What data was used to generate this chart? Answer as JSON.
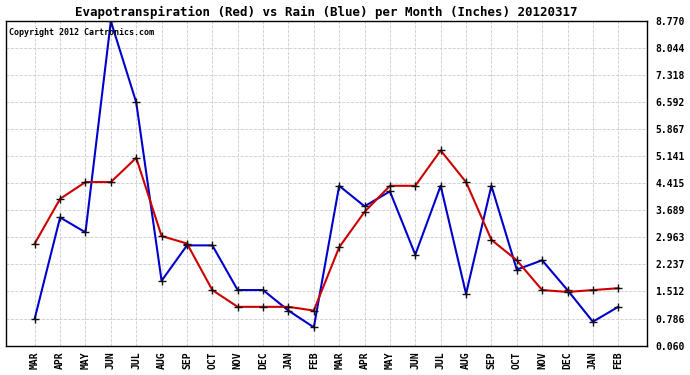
{
  "title": "Evapotranspiration (Red) vs Rain (Blue) per Month (Inches) 20120317",
  "copyright": "Copyright 2012 Cartronics.com",
  "x_labels": [
    "MAR",
    "APR",
    "MAY",
    "JUN",
    "JUL",
    "AUG",
    "SEP",
    "OCT",
    "NOV",
    "DEC",
    "JAN",
    "FEB",
    "MAR",
    "APR",
    "MAY",
    "JUN",
    "JUL",
    "AUG",
    "SEP",
    "OCT",
    "NOV",
    "DEC",
    "JAN",
    "FEB"
  ],
  "blue_values": [
    0.786,
    3.5,
    3.1,
    8.77,
    6.592,
    1.8,
    2.75,
    2.75,
    1.55,
    1.55,
    1.0,
    0.55,
    4.35,
    3.8,
    4.2,
    2.5,
    4.35,
    1.45,
    4.35,
    2.1,
    2.35,
    1.55,
    0.7,
    1.1
  ],
  "red_values": [
    2.8,
    4.0,
    4.45,
    4.45,
    5.1,
    3.0,
    2.8,
    1.55,
    1.1,
    1.1,
    1.1,
    1.0,
    2.7,
    3.65,
    4.35,
    4.35,
    5.3,
    4.45,
    2.9,
    2.35,
    1.55,
    1.5,
    1.55,
    1.6
  ],
  "y_ticks": [
    0.06,
    0.786,
    1.512,
    2.237,
    2.963,
    3.689,
    4.415,
    5.141,
    5.867,
    6.592,
    7.318,
    8.044,
    8.77
  ],
  "ylim": [
    0.06,
    8.77
  ],
  "plot_bg_color": "#ffffff",
  "outer_bg_color": "#ffffff",
  "grid_color": "#cccccc",
  "title_color": "#000000",
  "blue_color": "#0000cc",
  "red_color": "#cc0000",
  "marker_color": "#111111",
  "marker_size": 3,
  "line_width": 1.5,
  "title_fontsize": 9,
  "copyright_fontsize": 6,
  "tick_fontsize": 7
}
